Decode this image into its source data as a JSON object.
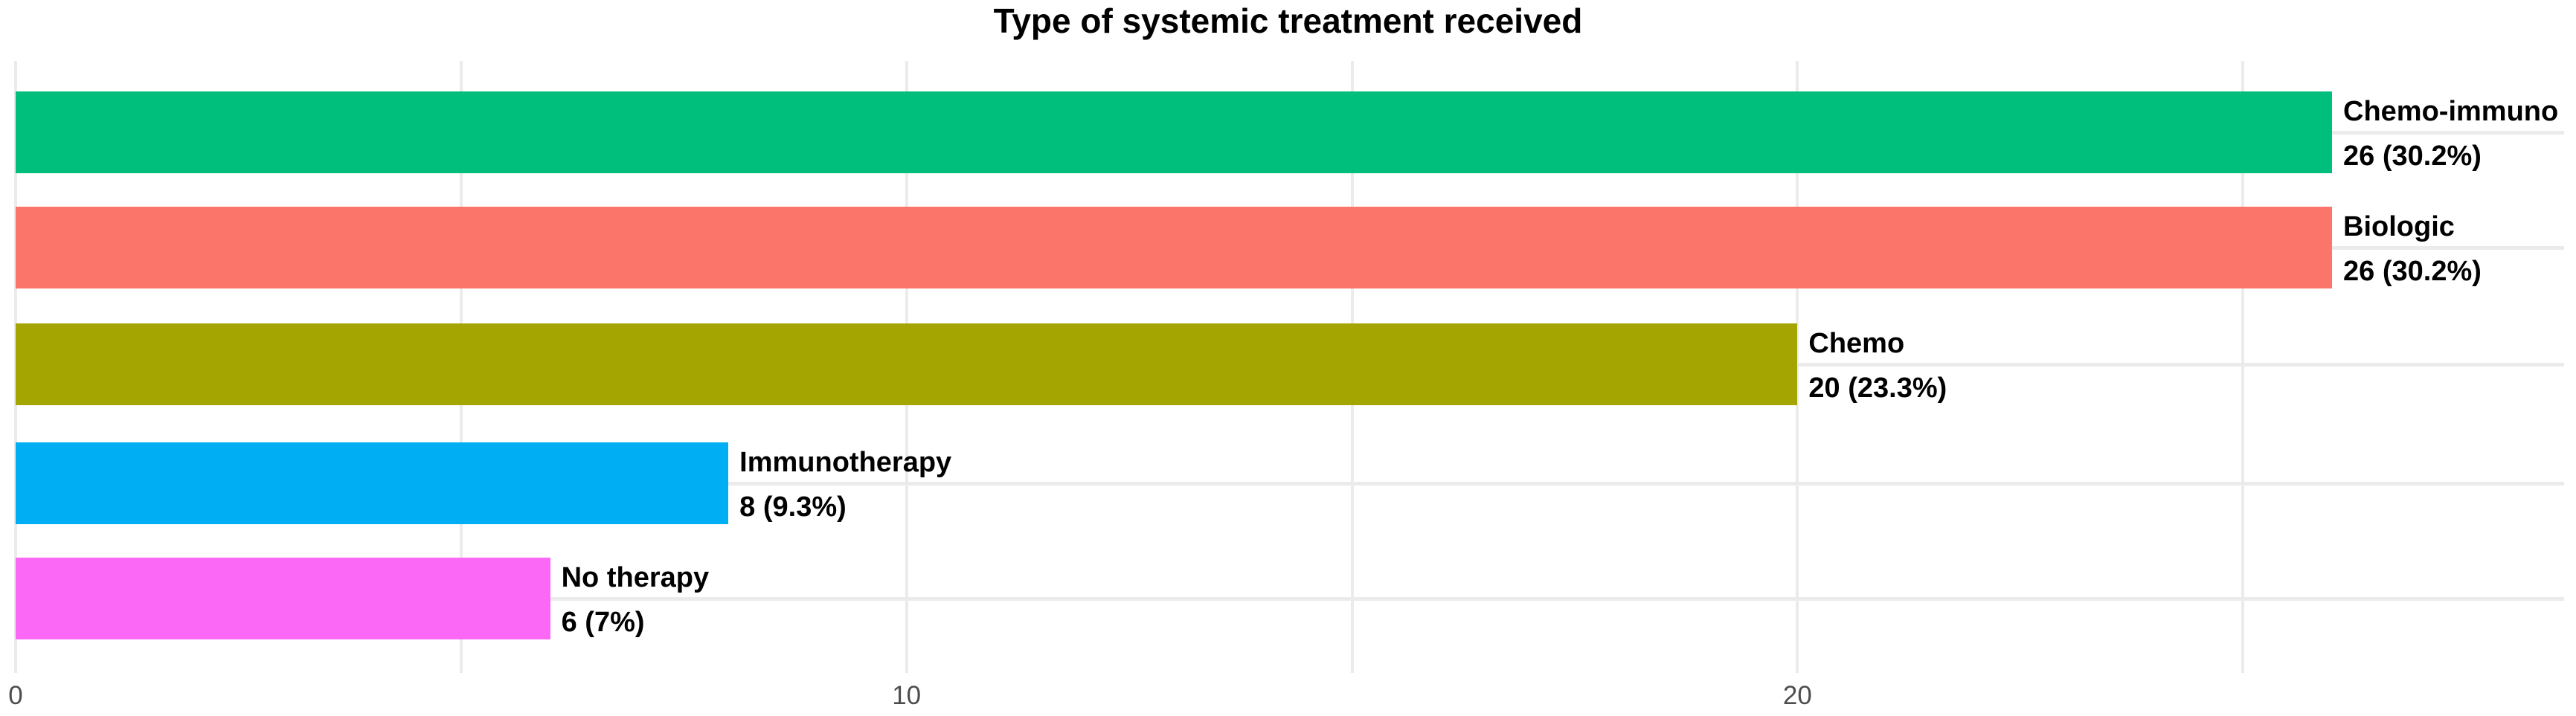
{
  "chart_data": {
    "type": "bar",
    "orientation": "horizontal",
    "title": "Type of systemic treatment received",
    "categories": [
      "Chemo-immuno",
      "Biologic",
      "Chemo",
      "Immunotherapy",
      "No therapy"
    ],
    "values": [
      26,
      26,
      20,
      8,
      6
    ],
    "value_labels": [
      "26 (30.2%)",
      "26 (30.2%)",
      "20 (23.3%)",
      "8 (9.3%)",
      "6 (7%)"
    ],
    "percentages": [
      30.2,
      30.2,
      23.3,
      9.3,
      7
    ],
    "bar_colors": [
      "#00BE7B",
      "#FC756B",
      "#A4A500",
      "#00AEF4",
      "#FA68F5"
    ],
    "xlabel": "",
    "ylabel": "",
    "x_tick_labels": [
      "0",
      "10",
      "20"
    ],
    "x_tick_values": [
      0,
      10,
      20
    ],
    "x_minor_gridline_values": [
      5,
      15,
      25
    ],
    "xlim": [
      0,
      28.7
    ],
    "grid": true,
    "legend": "none",
    "background_color": "#FFFFFF",
    "gridline_color": "#EBEBEB",
    "tick_label_color": "#4D4D4D",
    "bar_label_color": "#000000",
    "title_color": "#000000"
  }
}
